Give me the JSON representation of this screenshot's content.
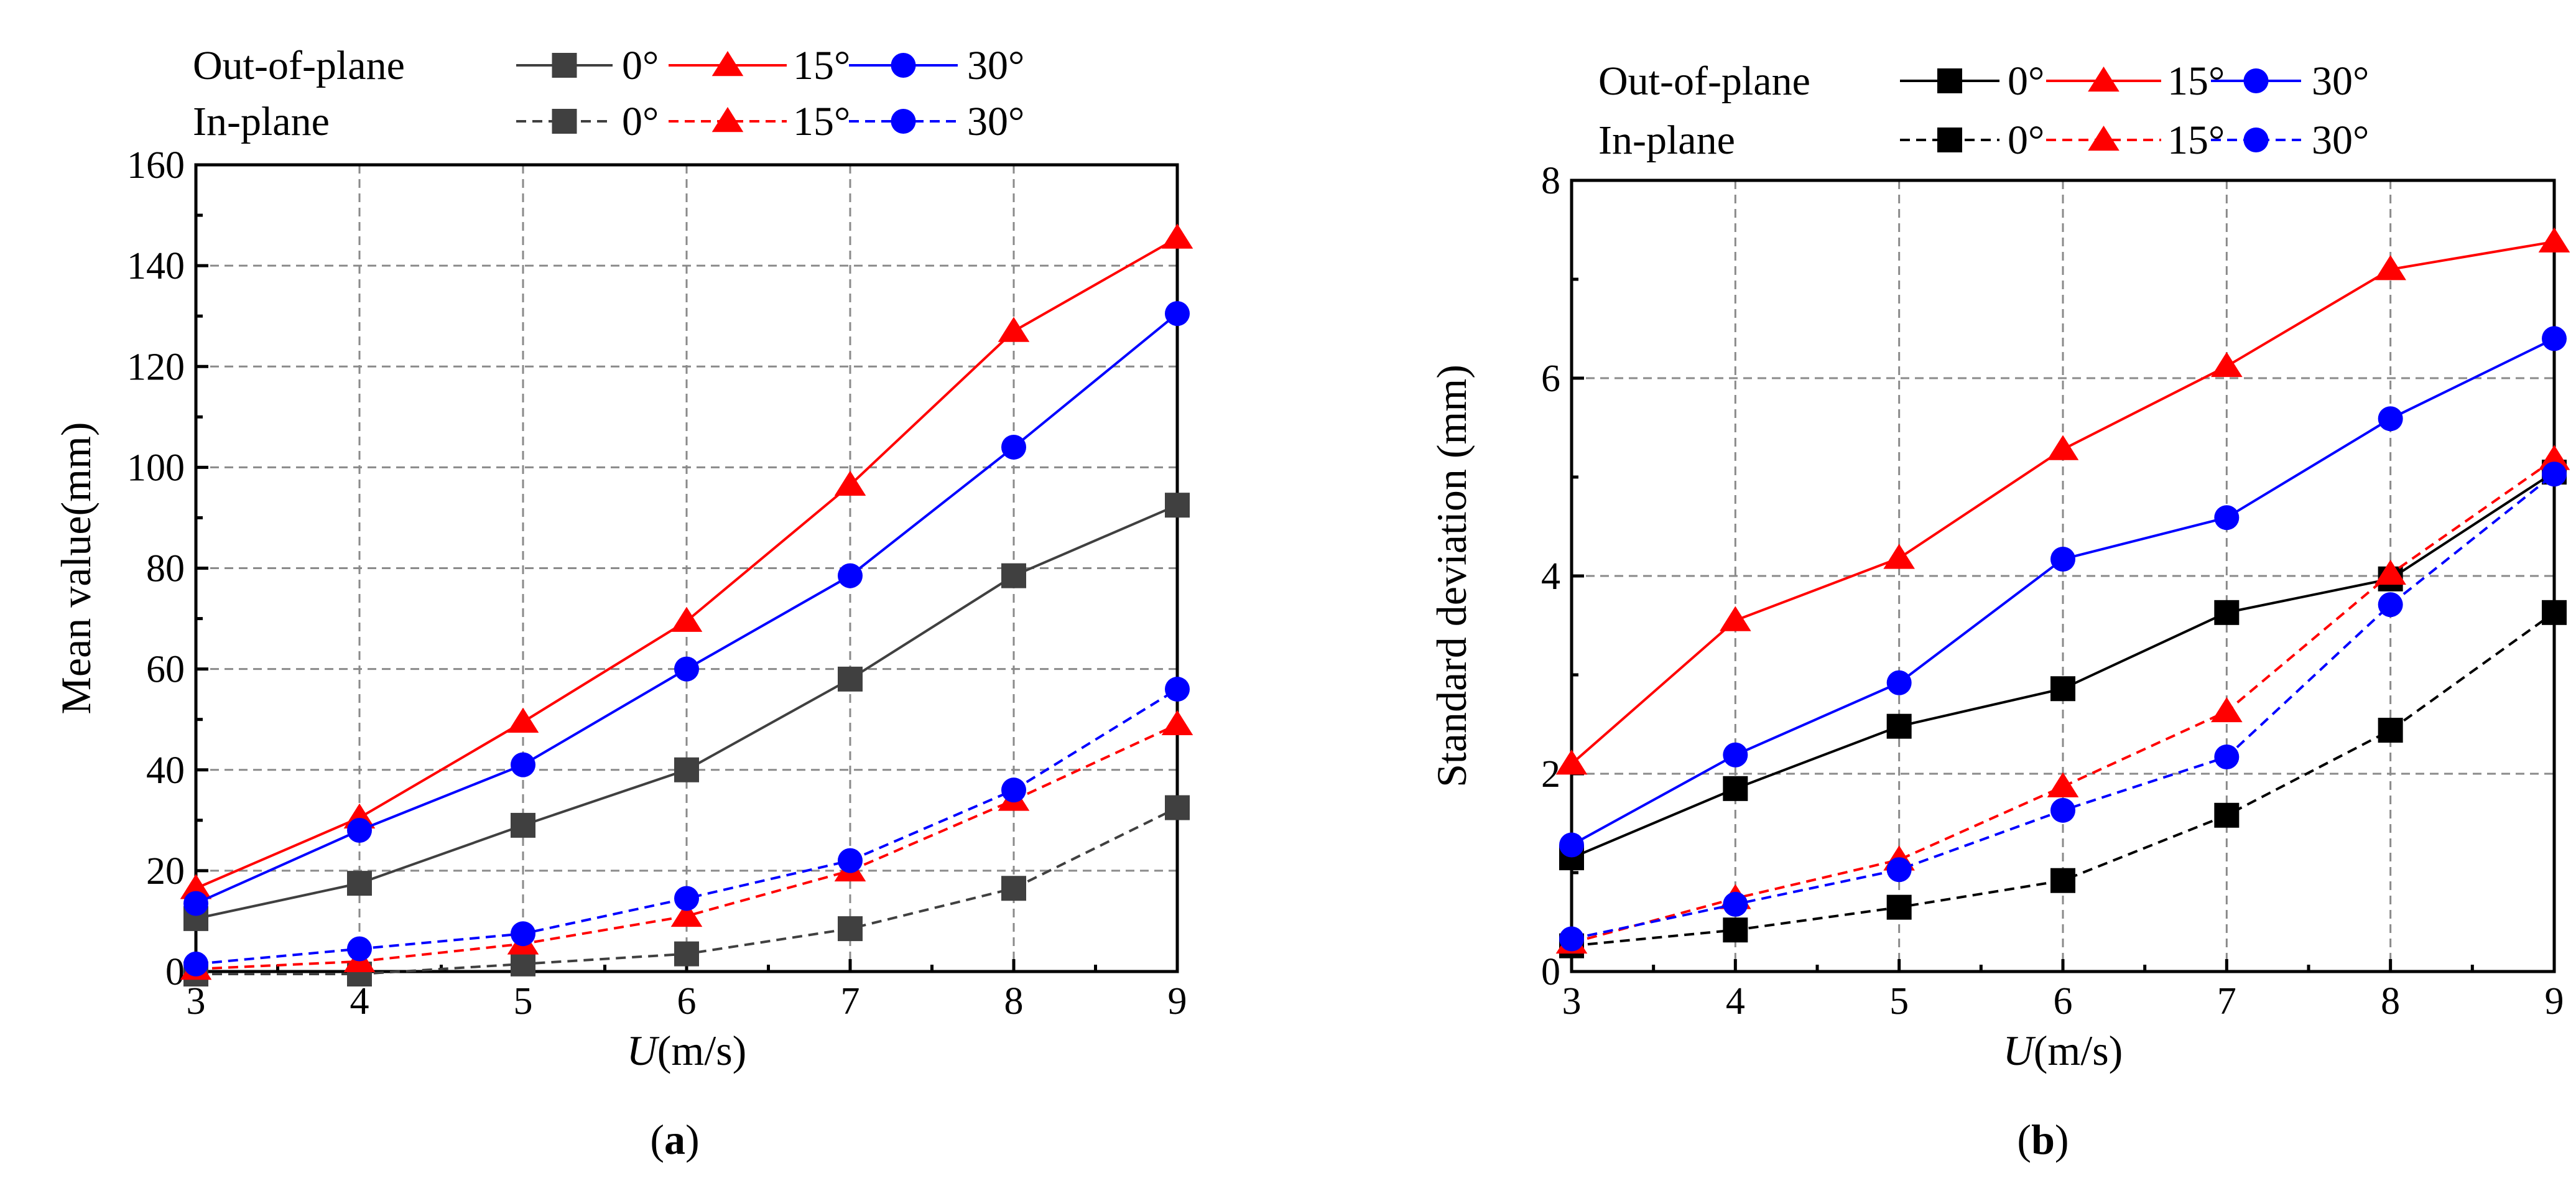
{
  "chart_data": [
    {
      "type": "line",
      "panel_label": "a",
      "title": "",
      "xlabel_italic": "U",
      "xlabel_rest": "(m/s)",
      "ylabel": "Mean value(mm)",
      "xlim": [
        3,
        9
      ],
      "ylim": [
        0,
        160
      ],
      "grid": true,
      "x_ticks": [
        3,
        4,
        5,
        6,
        7,
        8,
        9
      ],
      "y_ticks": [
        0,
        20,
        40,
        60,
        80,
        100,
        120,
        140,
        160
      ],
      "x": [
        3,
        4,
        5,
        6,
        7,
        8,
        9
      ],
      "legend": {
        "rows": [
          {
            "label": "Out-of-plane",
            "style": "solid"
          },
          {
            "label": "In-plane",
            "style": "dashed"
          }
        ],
        "placement": "top"
      },
      "series": [
        {
          "name": "0°",
          "group": "Out-of-plane",
          "color": "#404040",
          "marker": "square",
          "dash": false,
          "values": [
            10.5,
            17.5,
            29,
            40,
            58,
            78.5,
            92.5
          ]
        },
        {
          "name": "15°",
          "group": "Out-of-plane",
          "color": "#ff0000",
          "marker": "triangle",
          "dash": false,
          "values": [
            16.5,
            30.5,
            49.5,
            69.5,
            96.5,
            127,
            145.5
          ]
        },
        {
          "name": "30°",
          "group": "Out-of-plane",
          "color": "#0000ff",
          "marker": "circle",
          "dash": false,
          "values": [
            13.5,
            28,
            41,
            60,
            78.5,
            104,
            130.5
          ]
        },
        {
          "name": "0°",
          "group": "In-plane",
          "color": "#404040",
          "marker": "square",
          "dash": true,
          "values": [
            -0.5,
            -0.5,
            1.5,
            3.5,
            8.5,
            16.5,
            32.5
          ]
        },
        {
          "name": "15°",
          "group": "In-plane",
          "color": "#ff0000",
          "marker": "triangle",
          "dash": true,
          "values": [
            0.5,
            2,
            5.5,
            11,
            20,
            34,
            49
          ]
        },
        {
          "name": "30°",
          "group": "In-plane",
          "color": "#0000ff",
          "marker": "circle",
          "dash": true,
          "values": [
            1.5,
            4.5,
            7.5,
            14.5,
            22,
            36,
            56
          ]
        }
      ]
    },
    {
      "type": "line",
      "panel_label": "b",
      "title": "",
      "xlabel_italic": "U",
      "xlabel_rest": "(m/s)",
      "ylabel": "Standard deviation (mm)",
      "xlim": [
        3,
        9
      ],
      "ylim": [
        0,
        8
      ],
      "grid": true,
      "x_ticks": [
        3,
        4,
        5,
        6,
        7,
        8,
        9
      ],
      "y_ticks": [
        0,
        2,
        4,
        6,
        8
      ],
      "x": [
        3,
        4,
        5,
        6,
        7,
        8,
        9
      ],
      "legend": {
        "rows": [
          {
            "label": "Out-of-plane",
            "style": "solid"
          },
          {
            "label": "In-plane",
            "style": "dashed"
          }
        ],
        "placement": "top"
      },
      "series": [
        {
          "name": "0°",
          "group": "Out-of-plane",
          "color": "#000000",
          "marker": "square",
          "dash": false,
          "values": [
            1.15,
            1.85,
            2.48,
            2.86,
            3.63,
            3.97,
            5.05
          ]
        },
        {
          "name": "15°",
          "group": "Out-of-plane",
          "color": "#ff0000",
          "marker": "triangle",
          "dash": false,
          "values": [
            2.1,
            3.55,
            4.18,
            5.28,
            6.12,
            7.1,
            7.38
          ]
        },
        {
          "name": "30°",
          "group": "Out-of-plane",
          "color": "#0000ff",
          "marker": "circle",
          "dash": false,
          "values": [
            1.28,
            2.19,
            2.92,
            4.17,
            4.59,
            5.59,
            6.4
          ]
        },
        {
          "name": "0°",
          "group": "In-plane",
          "color": "#000000",
          "marker": "square",
          "dash": true,
          "values": [
            0.26,
            0.42,
            0.65,
            0.92,
            1.58,
            2.44,
            3.63
          ]
        },
        {
          "name": "15°",
          "group": "In-plane",
          "color": "#ff0000",
          "marker": "triangle",
          "dash": true,
          "values": [
            0.29,
            0.74,
            1.13,
            1.87,
            2.63,
            4.02,
            5.18
          ]
        },
        {
          "name": "30°",
          "group": "In-plane",
          "color": "#0000ff",
          "marker": "circle",
          "dash": true,
          "values": [
            0.33,
            0.68,
            1.03,
            1.63,
            2.17,
            3.71,
            5.03
          ]
        }
      ]
    }
  ]
}
